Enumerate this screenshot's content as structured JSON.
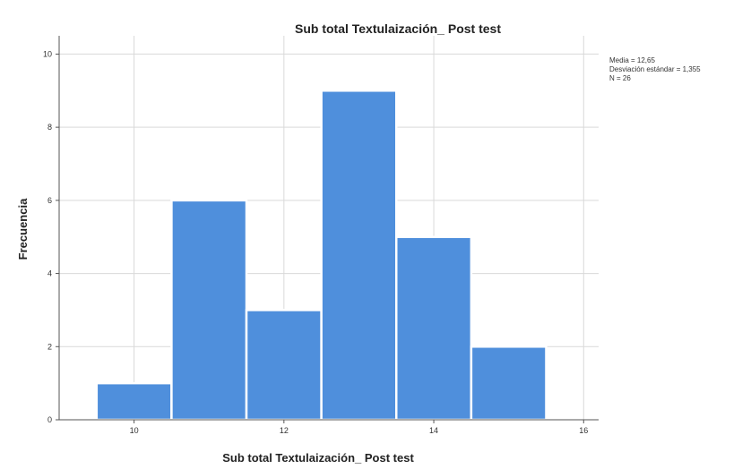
{
  "chart_data": {
    "type": "bar",
    "title": "Sub total Textulaización_ Post test",
    "xlabel": "Sub total Textulaización_ Post test",
    "ylabel": "Frecuencia",
    "bins": [
      {
        "from": 9.5,
        "to": 10.5,
        "count": 1
      },
      {
        "from": 10.5,
        "to": 11.5,
        "count": 6
      },
      {
        "from": 11.5,
        "to": 12.5,
        "count": 3
      },
      {
        "from": 12.5,
        "to": 13.5,
        "count": 9
      },
      {
        "from": 13.5,
        "to": 14.5,
        "count": 5
      },
      {
        "from": 14.5,
        "to": 15.5,
        "count": 2
      }
    ],
    "xlim": [
      9,
      16.2
    ],
    "ylim": [
      0,
      10.5
    ],
    "x_ticks": [
      "10",
      "12",
      "14",
      "16"
    ],
    "y_ticks": [
      "0",
      "2",
      "4",
      "6",
      "8",
      "10"
    ],
    "grid": true,
    "bar_color": "#4f8fdc",
    "stats": {
      "mean": "Media = 12,65",
      "sd": "Desviación estándar = 1,355",
      "n": "N = 26"
    }
  }
}
